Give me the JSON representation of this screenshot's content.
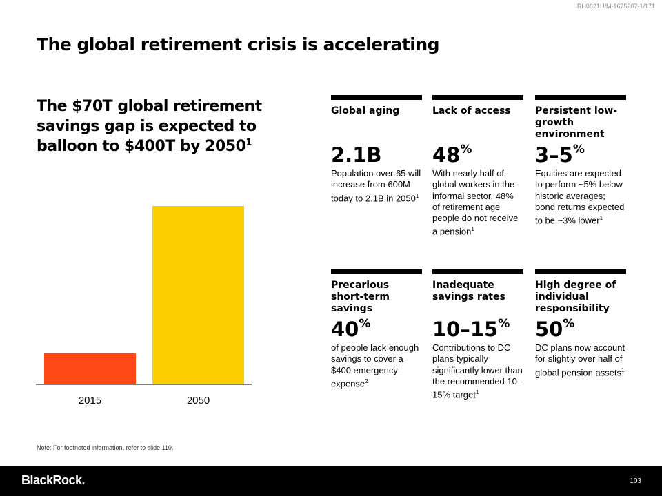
{
  "doc_id": "IRH0621U/M-1675207-1/171",
  "title": "The global retirement crisis is accelerating",
  "subtitle": {
    "text": "The $70T global retirement savings gap is expected to balloon to $400T by 2050",
    "footnote": "1"
  },
  "chart_data": {
    "type": "bar",
    "categories": [
      "2015",
      "2050"
    ],
    "values": [
      70,
      400
    ],
    "colors": [
      "#FF4A17",
      "#FFCE00"
    ],
    "unit": "$T",
    "grid": false
  },
  "cards": [
    {
      "heading": "Global aging",
      "stat": "2.1B",
      "stat_suffix": "",
      "body": "Population over 65 will increase from 600M today to 2.1B in 2050",
      "footnote": "1"
    },
    {
      "heading": "Lack of access",
      "stat": "48",
      "stat_suffix": "%",
      "body": "With nearly half of global workers in the informal sector, 48% of retirement age people do not receive a pension",
      "footnote": "1"
    },
    {
      "heading": "Persistent low-growth environment",
      "stat": "3–5",
      "stat_suffix": "%",
      "body": "Equities are expected to perform ~5% below historic averages; bond returns expected to be ~3% lower",
      "footnote": "1"
    },
    {
      "heading": "Precarious short-term savings",
      "stat": "40",
      "stat_suffix": "%",
      "body": "of people lack enough savings to cover a $400 emergency expense",
      "footnote": "2"
    },
    {
      "heading": "Inadequate savings rates",
      "stat": "10–15",
      "stat_suffix": "%",
      "body": "Contributions to DC plans typically significantly lower than the recommended 10-15% target",
      "footnote": "1"
    },
    {
      "heading": "High degree of individual responsibility",
      "stat": "50",
      "stat_suffix": "%",
      "body": "DC plans now account for slightly over half of global pension assets",
      "footnote": "1"
    }
  ],
  "note": "Note: For footnoted information, refer to slide 110.",
  "footer": {
    "logo": "BlackRock.",
    "page_number": "103"
  }
}
